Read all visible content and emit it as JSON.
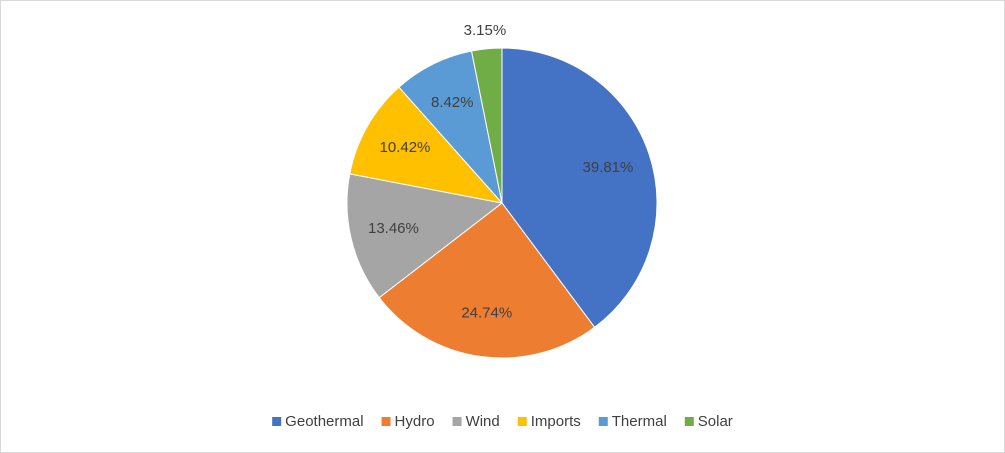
{
  "chart_data": {
    "type": "pie",
    "categories": [
      "Geothermal",
      "Hydro",
      "Wind",
      "Imports",
      "Thermal",
      "Solar"
    ],
    "values": [
      39.81,
      24.74,
      13.46,
      10.42,
      8.42,
      3.15
    ],
    "value_labels": [
      "39.81%",
      "24.74%",
      "13.46%",
      "10.42%",
      "8.42%",
      "3.15%"
    ],
    "colors": [
      "#4472c4",
      "#ed7d31",
      "#a5a5a5",
      "#ffc000",
      "#5b9bd5",
      "#70ad47"
    ],
    "legend": "bottom"
  }
}
